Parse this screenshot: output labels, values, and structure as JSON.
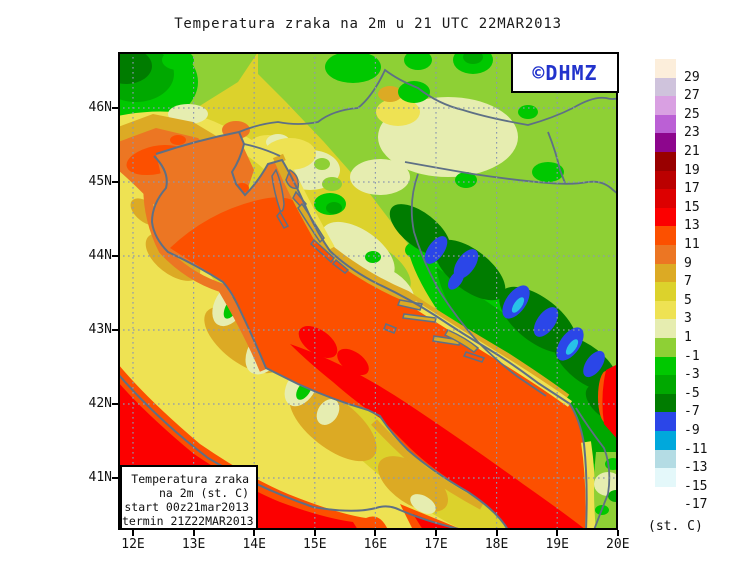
{
  "title": "Temperatura zraka na 2m u 21 UTC 22MAR2013",
  "logo": {
    "text": "©DHMZ",
    "color": "#2233cc"
  },
  "info_box": {
    "lines": [
      "Temperatura zraka",
      "na 2m (st. C)",
      "start 00z21mar2013",
      "termin 21Z22MAR2013"
    ]
  },
  "axes": {
    "lat_labels": [
      "46N",
      "45N",
      "44N",
      "43N",
      "42N",
      "41N"
    ],
    "lon_labels": [
      "12E",
      "13E",
      "14E",
      "15E",
      "16E",
      "17E",
      "18E",
      "19E",
      "20E"
    ]
  },
  "colorbar": {
    "units": "(st. C)",
    "levels": [
      "29",
      "27",
      "25",
      "23",
      "21",
      "19",
      "17",
      "15",
      "13",
      "11",
      "9",
      "7",
      "5",
      "3",
      "1",
      "-1",
      "-3",
      "-5",
      "-7",
      "-9",
      "-11",
      "-13",
      "-15",
      "-17"
    ],
    "band_colors": [
      "#fceedb",
      "#cfc3dc",
      "#d9a0e2",
      "#bb60d5",
      "#8d068d",
      "#990000",
      "#bb0000",
      "#dd0000",
      "#fc0000",
      "#fc5000",
      "#ec7623",
      "#dcaa24",
      "#dcd22c",
      "#eee253",
      "#e6edb0",
      "#8ed035",
      "#00c800",
      "#00a800",
      "#007c00",
      "#2b46e8",
      "#00a8dc",
      "#b4dce4",
      "#e4f8fa",
      "#ffffff"
    ]
  },
  "colors": {
    "accent_blue": "#2233cc",
    "coastline": "#5e7085",
    "gridline": "#8c98b0",
    "frame": "#000000"
  }
}
